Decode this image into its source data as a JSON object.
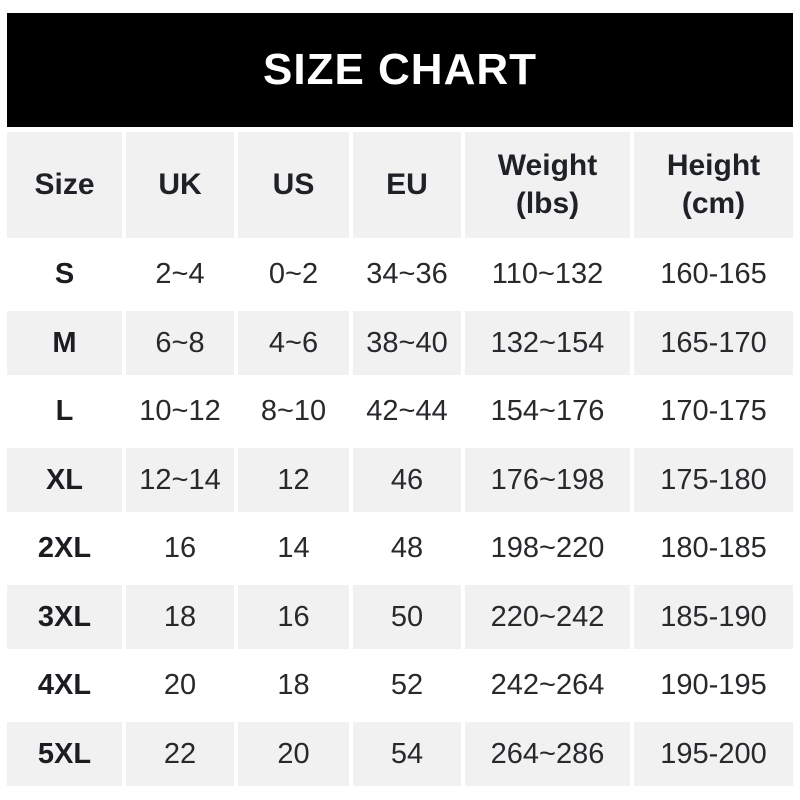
{
  "banner": {
    "title": "SIZE CHART"
  },
  "colors": {
    "banner_bg": "#000000",
    "banner_text": "#ffffff",
    "stripe_bg": "#f1f1f2",
    "cell_text": "#27292c",
    "page_bg": "#ffffff"
  },
  "header_display": [
    {
      "label": "Size"
    },
    {
      "label": "UK"
    },
    {
      "label": "US"
    },
    {
      "label": "EU"
    },
    {
      "label": "Weight",
      "sublabel": "(lbs)"
    },
    {
      "label": "Height",
      "sublabel": "(cm)"
    }
  ],
  "chart_data": {
    "type": "table",
    "title": "SIZE CHART",
    "columns": [
      "Size",
      "UK",
      "US",
      "EU",
      "Weight (lbs)",
      "Height (cm)"
    ],
    "rows": [
      [
        "S",
        "2~4",
        "0~2",
        "34~36",
        "110~132",
        "160-165"
      ],
      [
        "M",
        "6~8",
        "4~6",
        "38~40",
        "132~154",
        "165-170"
      ],
      [
        "L",
        "10~12",
        "8~10",
        "42~44",
        "154~176",
        "170-175"
      ],
      [
        "XL",
        "12~14",
        "12",
        "46",
        "176~198",
        "175-180"
      ],
      [
        "2XL",
        "16",
        "14",
        "48",
        "198~220",
        "180-185"
      ],
      [
        "3XL",
        "18",
        "16",
        "50",
        "220~242",
        "185-190"
      ],
      [
        "4XL",
        "20",
        "18",
        "52",
        "242~264",
        "190-195"
      ],
      [
        "5XL",
        "22",
        "20",
        "54",
        "264~286",
        "195-200"
      ]
    ]
  }
}
